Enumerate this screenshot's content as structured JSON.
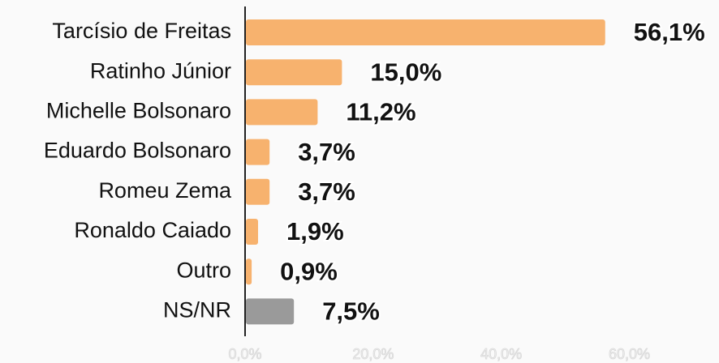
{
  "chart_data": {
    "type": "barh",
    "categories": [
      "Tarcísio de Freitas",
      "Ratinho Júnior",
      "Michelle Bolsonaro",
      "Eduardo Bolsonaro",
      "Romeu Zema",
      "Ronaldo Caiado",
      "Outro",
      "NS/NR"
    ],
    "values": [
      56.1,
      15.0,
      11.2,
      3.7,
      3.7,
      1.9,
      0.9,
      7.5
    ],
    "value_labels": [
      "56,1%",
      "15,0%",
      "11,2%",
      "3,7%",
      "3,7%",
      "1,9%",
      "0,9%",
      "7,5%"
    ],
    "colors": [
      "#f7b26e",
      "#f7b26e",
      "#f7b26e",
      "#f7b26e",
      "#f7b26e",
      "#f7b26e",
      "#f7b26e",
      "#9a9a9a"
    ],
    "xlim": [
      0,
      74
    ],
    "xticks": [
      {
        "value": 0,
        "label": "0,0%"
      },
      {
        "value": 20,
        "label": "20,0%"
      },
      {
        "value": 40,
        "label": "40,0%"
      },
      {
        "value": 60,
        "label": "60,0%"
      }
    ]
  }
}
